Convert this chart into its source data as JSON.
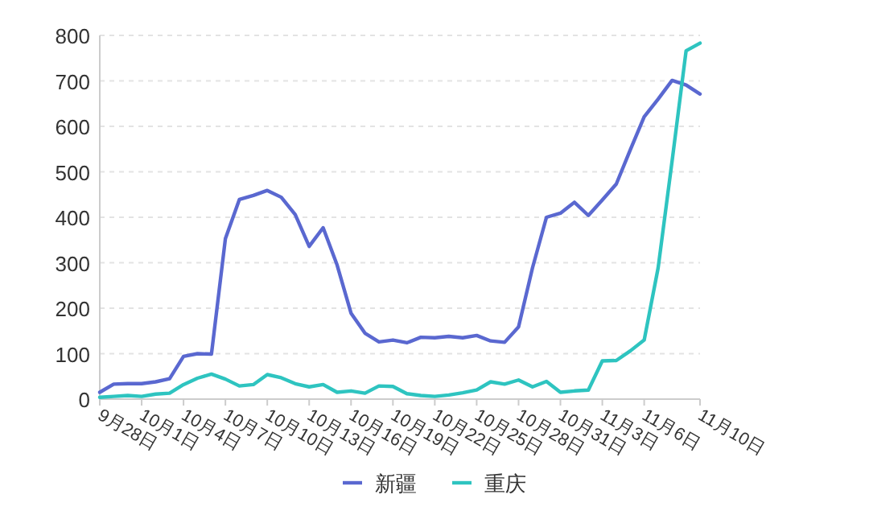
{
  "chart_data": {
    "type": "line",
    "x": [
      "--09-28",
      "--09-29",
      "--09-30",
      "--10-01",
      "--10-02",
      "--10-03",
      "--10-04",
      "--10-05",
      "--10-06",
      "--10-07",
      "--10-08",
      "--10-09",
      "--10-10",
      "--10-11",
      "--10-12",
      "--10-13",
      "--10-14",
      "--10-15",
      "--10-16",
      "--10-17",
      "--10-18",
      "--10-19",
      "--10-20",
      "--10-21",
      "--10-22",
      "--10-23",
      "--10-24",
      "--10-25",
      "--10-26",
      "--10-27",
      "--10-28",
      "--10-29",
      "--10-30",
      "--10-31",
      "--11-01",
      "--11-02",
      "--11-03",
      "--11-04",
      "--11-05",
      "--11-06",
      "--11-07",
      "--11-08",
      "--11-09",
      "--11-10"
    ],
    "series": [
      {
        "name": "新疆",
        "color": "#5a68d0",
        "values": [
          15,
          33,
          34,
          34,
          38,
          45,
          94,
          100,
          99,
          353,
          439,
          448,
          459,
          444,
          406,
          336,
          377,
          295,
          189,
          145,
          126,
          130,
          124,
          136,
          135,
          138,
          135,
          140,
          128,
          125,
          159,
          289,
          400,
          409,
          433,
          404,
          438,
          473,
          548,
          621,
          660,
          701,
          691,
          671
        ]
      },
      {
        "name": "重庆",
        "color": "#2ec4c0",
        "values": [
          4,
          6,
          8,
          6,
          11,
          13,
          32,
          46,
          55,
          44,
          29,
          32,
          54,
          47,
          34,
          27,
          32,
          15,
          18,
          13,
          29,
          28,
          12,
          8,
          6,
          9,
          14,
          20,
          38,
          33,
          42,
          27,
          39,
          15,
          18,
          20,
          84,
          85,
          106,
          130,
          289,
          524,
          766,
          783
        ]
      }
    ],
    "xlim": [
      "--09-28",
      "--11-10"
    ],
    "xticks": [
      {
        "value": "--09-28",
        "label": "9月28日"
      },
      {
        "value": "--10-01",
        "label": "10月1日"
      },
      {
        "value": "--10-04",
        "label": "10月4日"
      },
      {
        "value": "--10-07",
        "label": "10月7日"
      },
      {
        "value": "--10-10",
        "label": "10月10日"
      },
      {
        "value": "--10-13",
        "label": "10月13日"
      },
      {
        "value": "--10-16",
        "label": "10月16日"
      },
      {
        "value": "--10-19",
        "label": "10月19日"
      },
      {
        "value": "--10-22",
        "label": "10月22日"
      },
      {
        "value": "--10-25",
        "label": "10月25日"
      },
      {
        "value": "--10-28",
        "label": "10月28日"
      },
      {
        "value": "--10-31",
        "label": "10月31日"
      },
      {
        "value": "--11-03",
        "label": "11月3日"
      },
      {
        "value": "--11-06",
        "label": "11月6日"
      },
      {
        "value": "--11-10",
        "label": "11月10日"
      }
    ],
    "ylim": [
      0,
      800
    ],
    "yticks": [
      0,
      100,
      200,
      300,
      400,
      500,
      600,
      700,
      800
    ],
    "grid": "y",
    "legend": "bottom"
  }
}
